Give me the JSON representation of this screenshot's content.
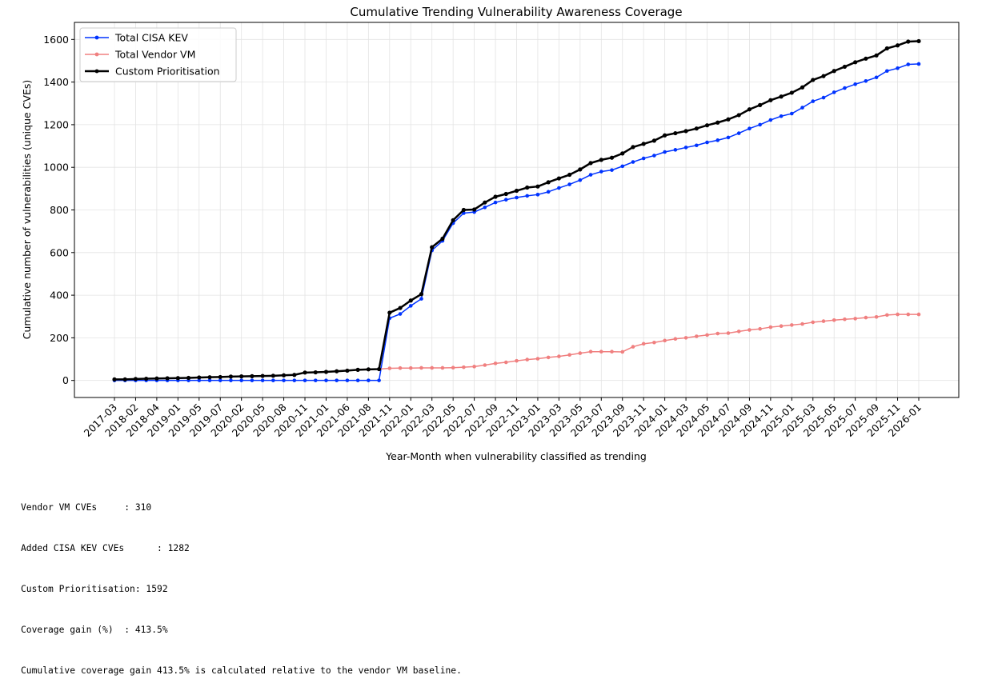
{
  "chart_data": {
    "type": "line",
    "title": "Cumulative Trending Vulnerability Awareness Coverage",
    "xlabel": "Year-Month when vulnerability classified as trending",
    "ylabel": "Cumulative number of vulnerabilities (unique CVEs)",
    "ylim": [
      -80,
      1680
    ],
    "yticks": [
      0,
      200,
      400,
      600,
      800,
      1000,
      1200,
      1400,
      1600
    ],
    "grid": true,
    "legend_position": "top-left",
    "x_tick_every": 2,
    "x_tick_labels": [
      "2017-03",
      "2018-02",
      "2018-04",
      "2019-01",
      "2019-05",
      "2019-07",
      "2020-02",
      "2020-05",
      "2020-08",
      "2020-11",
      "2021-01",
      "2021-06",
      "2021-08",
      "2021-11",
      "2022-01",
      "2022-03",
      "2022-05",
      "2022-07",
      "2022-09",
      "2022-11",
      "2023-01",
      "2023-03",
      "2023-05",
      "2023-07",
      "2023-09",
      "2023-11",
      "2024-01",
      "2024-03",
      "2024-05",
      "2024-07",
      "2024-09",
      "2024-11",
      "2025-01",
      "2025-03",
      "2025-05",
      "2025-07",
      "2025-09",
      "2025-11",
      "2026-01"
    ],
    "series": [
      {
        "name": "Total CISA KEV",
        "color": "#0033ff",
        "width": 1.5,
        "values": [
          0,
          0,
          0,
          0,
          0,
          0,
          0,
          0,
          0,
          0,
          0,
          0,
          0,
          0,
          0,
          0,
          0,
          0,
          0,
          0,
          0,
          0,
          0,
          0,
          0,
          0,
          292,
          312,
          350,
          383,
          610,
          655,
          738,
          785,
          790,
          812,
          835,
          848,
          858,
          866,
          872,
          885,
          903,
          920,
          940,
          965,
          980,
          987,
          1005,
          1025,
          1042,
          1055,
          1072,
          1082,
          1093,
          1103,
          1117,
          1127,
          1140,
          1160,
          1182,
          1200,
          1222,
          1240,
          1252,
          1280,
          1310,
          1327,
          1352,
          1372,
          1390,
          1405,
          1422,
          1452,
          1465,
          1483,
          1485
        ]
      },
      {
        "name": "Total Vendor VM",
        "color": "#f08080",
        "width": 1.5,
        "values": [
          5,
          5,
          7,
          8,
          9,
          10,
          11,
          12,
          14,
          15,
          16,
          18,
          19,
          20,
          21,
          22,
          24,
          26,
          37,
          38,
          40,
          43,
          46,
          50,
          52,
          53,
          57,
          58,
          58,
          59,
          59,
          59,
          60,
          62,
          65,
          72,
          80,
          85,
          92,
          98,
          102,
          108,
          113,
          120,
          128,
          135,
          135,
          135,
          134,
          158,
          172,
          178,
          187,
          195,
          200,
          207,
          213,
          220,
          222,
          230,
          237,
          242,
          250,
          255,
          260,
          265,
          273,
          278,
          283,
          287,
          290,
          295,
          298,
          307,
          310,
          310,
          310
        ]
      },
      {
        "name": "Custom Prioritisation",
        "color": "#000000",
        "width": 2.5,
        "values": [
          5,
          5,
          7,
          8,
          9,
          10,
          11,
          12,
          14,
          15,
          16,
          18,
          19,
          20,
          21,
          22,
          24,
          26,
          37,
          38,
          40,
          43,
          46,
          50,
          52,
          53,
          318,
          340,
          375,
          405,
          625,
          665,
          752,
          800,
          802,
          835,
          862,
          875,
          890,
          905,
          910,
          930,
          948,
          965,
          990,
          1020,
          1035,
          1045,
          1065,
          1095,
          1110,
          1125,
          1150,
          1160,
          1170,
          1182,
          1197,
          1210,
          1225,
          1245,
          1272,
          1292,
          1315,
          1332,
          1350,
          1375,
          1410,
          1428,
          1452,
          1472,
          1493,
          1510,
          1525,
          1558,
          1572,
          1590,
          1592
        ]
      }
    ]
  },
  "footer": {
    "lines": [
      "Vendor VM CVEs     : 310",
      "Added CISA KEV CVEs      : 1282",
      "Custom Prioritisation: 1592",
      "Coverage gain (%)  : 413.5%",
      "Cumulative coverage gain 413.5% is calculated relative to the vendor VM baseline."
    ]
  }
}
